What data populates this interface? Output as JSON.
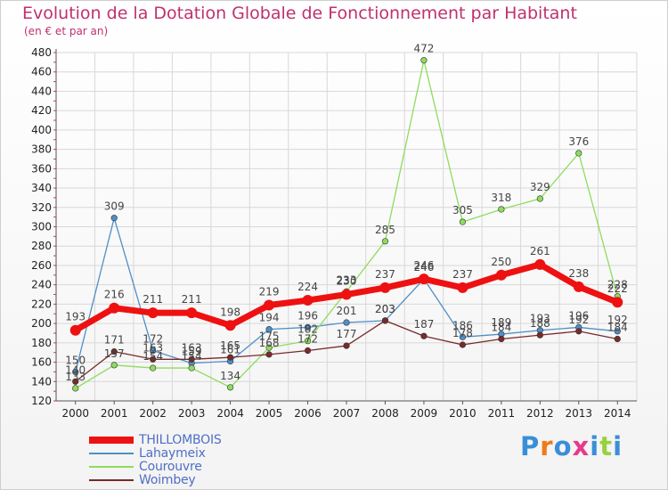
{
  "title": "Evolution de la Dotation Globale de Fonctionnement par Habitant",
  "subtitle": "(en € et par an)",
  "logo_text": "Proxiti",
  "chart_data": {
    "type": "line",
    "title": "Evolution de la Dotation Globale de Fonctionnement par Habitant",
    "subtitle": "(en € et par an)",
    "xlabel": "",
    "ylabel": "",
    "x": [
      "2000",
      "2001",
      "2002",
      "2003",
      "2004",
      "2005",
      "2006",
      "2007",
      "2008",
      "2009",
      "2010",
      "2011",
      "2012",
      "2013",
      "2014"
    ],
    "ylim": [
      120,
      480
    ],
    "yticks": [
      120,
      140,
      160,
      180,
      200,
      220,
      240,
      260,
      280,
      300,
      320,
      340,
      360,
      380,
      400,
      420,
      440,
      460,
      480
    ],
    "grid": true,
    "legend_position": "bottom-left",
    "series": [
      {
        "name": "THILLOMBOIS",
        "color": "#ee1111",
        "values": [
          193,
          216,
          211,
          211,
          198,
          219,
          224,
          230,
          237,
          246,
          237,
          250,
          261,
          238,
          222
        ]
      },
      {
        "name": "Lahaymeix",
        "color": "#4f8fc8",
        "values": [
          150,
          309,
          172,
          159,
          161,
          194,
          196,
          201,
          203,
          246,
          186,
          189,
          193,
          196,
          192
        ]
      },
      {
        "name": "Courouvre",
        "color": "#8fdc5c",
        "values": [
          133,
          157,
          154,
          154,
          134,
          175,
          182,
          233,
          285,
          472,
          305,
          318,
          329,
          376,
          228
        ]
      },
      {
        "name": "Woimbey",
        "color": "#7a2a2a",
        "values": [
          140,
          171,
          163,
          163,
          165,
          168,
          172,
          177,
          203,
          187,
          178,
          184,
          188,
          192,
          184
        ]
      }
    ]
  }
}
